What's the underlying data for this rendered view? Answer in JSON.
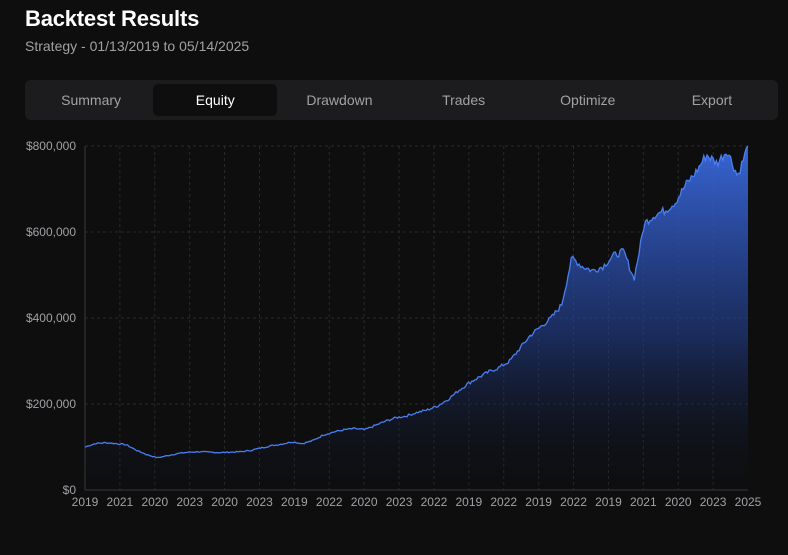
{
  "header": {
    "title": "Backtest Results",
    "subtitle": "Strategy - 01/13/2019 to 05/14/2025"
  },
  "tabs": [
    {
      "label": "Summary",
      "active": false
    },
    {
      "label": "Equity",
      "active": true
    },
    {
      "label": "Drawdown",
      "active": false
    },
    {
      "label": "Trades",
      "active": false
    },
    {
      "label": "Optimize",
      "active": false
    },
    {
      "label": "Export",
      "active": false
    }
  ],
  "colors": {
    "accent": "#4a7ef0",
    "background": "#0e0e0f",
    "tab_bar": "#1c1c1e"
  },
  "chart_data": {
    "type": "area",
    "title": "",
    "xlabel": "",
    "ylabel": "",
    "ylim": [
      0,
      800000
    ],
    "y_ticks": [
      "$0",
      "$200,000",
      "$400,000",
      "$600,000",
      "$800,000"
    ],
    "x_tick_labels": [
      "2019",
      "2021",
      "2020",
      "2023",
      "2020",
      "2023",
      "2019",
      "2022",
      "2020",
      "2023",
      "2022",
      "2019",
      "2022",
      "2019",
      "2022",
      "2019",
      "2021",
      "2020",
      "2023",
      "2025"
    ],
    "grid": true,
    "series": [
      {
        "values": [
          100000,
          108000,
          110000,
          108000,
          105000,
          92000,
          82000,
          75000,
          80000,
          85000,
          88000,
          89000,
          88000,
          87000,
          88000,
          89000,
          92000,
          98000,
          103000,
          107000,
          112000,
          108000,
          115000,
          128000,
          135000,
          140000,
          143000,
          140000,
          150000,
          160000,
          168000,
          172000,
          180000,
          186000,
          195000,
          210000,
          230000,
          248000,
          262000,
          275000,
          285000,
          300000,
          330000,
          360000,
          380000,
          400000,
          430000,
          540000,
          520000,
          510000,
          520000,
          545000,
          555000,
          490000,
          620000,
          640000,
          650000,
          670000,
          710000,
          740000,
          780000,
          760000,
          790000,
          730000,
          800000
        ]
      }
    ]
  }
}
